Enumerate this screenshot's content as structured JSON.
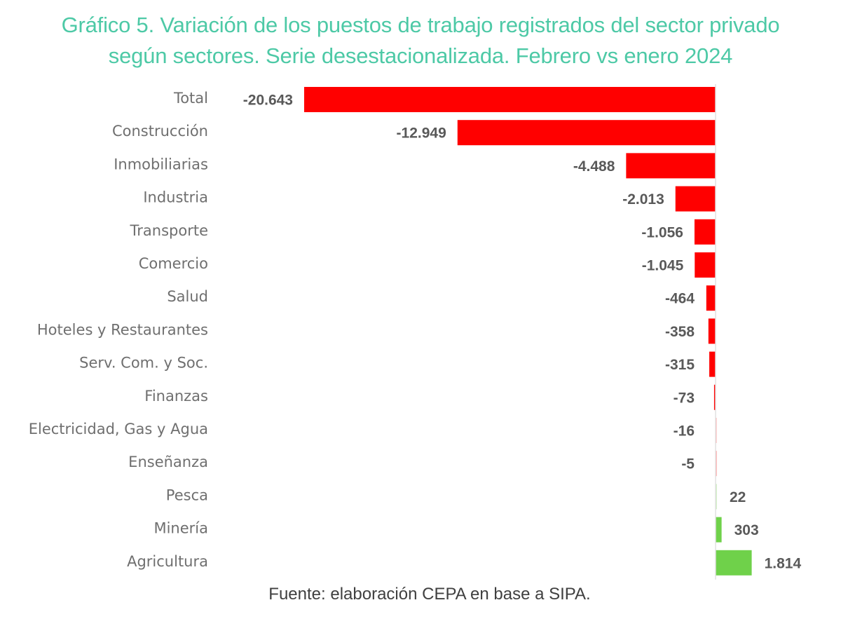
{
  "chart_data": {
    "type": "bar",
    "orientation": "horizontal",
    "title": "Gráfico 5. Variación de los puestos de trabajo registrados del sector privado según sectores. Serie desestacionalizada. Febrero vs enero 2024",
    "title_lines": [
      "Gráfico 5. Variación de los puestos de trabajo registrados del sector privado",
      "según sectores. Serie desestacionalizada. Febrero vs enero 2024"
    ],
    "xlabel": "",
    "ylabel": "",
    "categories": [
      "Total",
      "Construcción",
      "Inmobiliarias",
      "Industria",
      "Transporte",
      "Comercio",
      "Salud",
      "Hoteles y Restaurantes",
      "Serv. Com. y Soc.",
      "Finanzas",
      "Electricidad, Gas y Agua",
      "Enseñanza",
      "Pesca",
      "Minería",
      "Agricultura"
    ],
    "values": [
      -20643,
      -12949,
      -4488,
      -2013,
      -1056,
      -1045,
      -464,
      -358,
      -315,
      -73,
      -16,
      -5,
      22,
      303,
      1814
    ],
    "value_labels": [
      "-20.643",
      "-12.949",
      "-4.488",
      "-2.013",
      "-1.056",
      "-1.045",
      "-464",
      "-358",
      "-315",
      "-73",
      "-16",
      "-5",
      "22",
      "303",
      "1.814"
    ],
    "xlim": [
      -21000,
      2500
    ],
    "grid": false,
    "legend": "none",
    "colors": {
      "negative": "#ff0000",
      "positive": "#6fd14a",
      "axis": "#e0e0e0",
      "title": "#4dc9a6"
    }
  },
  "source": "Fuente: elaboración CEPA en base a SIPA."
}
